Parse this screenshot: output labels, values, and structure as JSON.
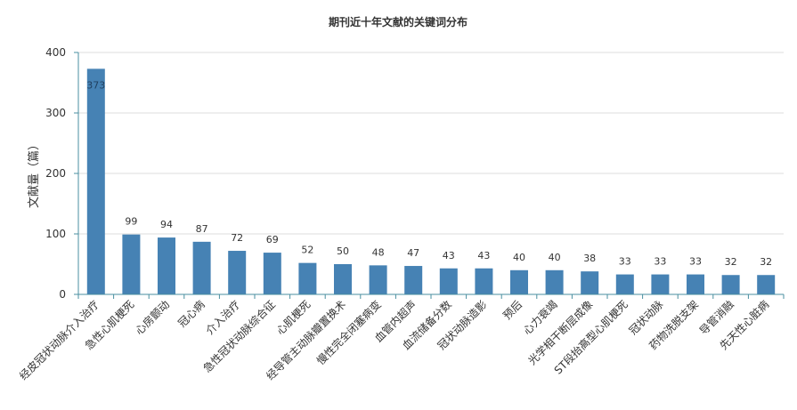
{
  "chart_data": {
    "type": "bar",
    "title": "期刊近十年文献的关键词分布",
    "xlabel": "",
    "ylabel": "文献量（篇）",
    "ylim": [
      0,
      400
    ],
    "yticks": [
      0,
      100,
      200,
      300,
      400
    ],
    "grid": true,
    "legend": "none",
    "bar_color": "#4682b4",
    "categories": [
      "经皮冠状动脉介入治疗",
      "急性心肌梗死",
      "心房颤动",
      "冠心病",
      "介入治疗",
      "急性冠状动脉综合征",
      "心肌梗死",
      "经导管主动脉瓣置换术",
      "慢性完全闭塞病变",
      "血管内超声",
      "血流储备分数",
      "冠状动脉造影",
      "预后",
      "心力衰竭",
      "光学相干断层成像",
      "ST段抬高型心肌梗死",
      "冠状动脉",
      "药物洗脱支架",
      "导管消融",
      "先天性心脏病"
    ],
    "values": [
      373,
      99,
      94,
      87,
      72,
      69,
      52,
      50,
      48,
      47,
      43,
      43,
      40,
      40,
      38,
      33,
      33,
      33,
      32,
      32
    ]
  }
}
